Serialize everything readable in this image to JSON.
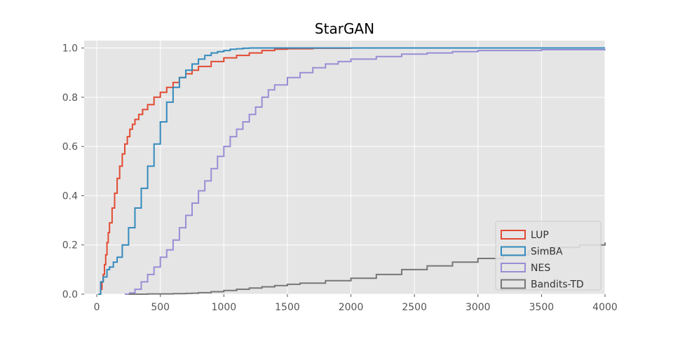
{
  "chart_data": {
    "type": "line",
    "title": "StarGAN",
    "xlabel": "",
    "ylabel": "",
    "xlim": [
      -100,
      4000
    ],
    "ylim": [
      0,
      1.03
    ],
    "xticks": [
      0,
      500,
      1000,
      1500,
      2000,
      2500,
      3000,
      3500,
      4000
    ],
    "yticks": [
      0.0,
      0.2,
      0.4,
      0.6,
      0.8,
      1.0
    ],
    "xtick_labels": [
      "0",
      "500",
      "1000",
      "1500",
      "2000",
      "2500",
      "3000",
      "3500",
      "4000"
    ],
    "ytick_labels": [
      "0.0",
      "0.2",
      "0.4",
      "0.6",
      "0.8",
      "1.0"
    ],
    "grid": true,
    "legend_position": "lower-right",
    "series": [
      {
        "name": "LUP",
        "color": "#E24A33",
        "x": [
          20,
          30,
          40,
          50,
          60,
          70,
          80,
          90,
          100,
          120,
          140,
          160,
          180,
          200,
          220,
          240,
          260,
          280,
          300,
          330,
          360,
          400,
          450,
          500,
          550,
          600,
          650,
          700,
          750,
          800,
          900,
          1000,
          1100,
          1200,
          1300,
          1400,
          1500,
          1700,
          2000,
          3000,
          4000
        ],
        "y": [
          0.0,
          0.02,
          0.05,
          0.08,
          0.12,
          0.16,
          0.21,
          0.25,
          0.29,
          0.35,
          0.41,
          0.47,
          0.52,
          0.57,
          0.61,
          0.64,
          0.67,
          0.69,
          0.71,
          0.73,
          0.75,
          0.77,
          0.8,
          0.82,
          0.84,
          0.86,
          0.88,
          0.895,
          0.91,
          0.925,
          0.945,
          0.96,
          0.97,
          0.98,
          0.99,
          0.995,
          0.997,
          0.999,
          1.0,
          1.0,
          1.0
        ]
      },
      {
        "name": "SimBA",
        "color": "#348ABD",
        "x": [
          10,
          30,
          50,
          80,
          100,
          130,
          160,
          200,
          250,
          300,
          350,
          400,
          450,
          500,
          550,
          600,
          650,
          700,
          750,
          800,
          850,
          900,
          950,
          1000,
          1050,
          1100,
          1150,
          1200,
          1300,
          1500,
          2000,
          4000
        ],
        "y": [
          0.0,
          0.05,
          0.07,
          0.1,
          0.11,
          0.13,
          0.15,
          0.2,
          0.27,
          0.35,
          0.43,
          0.52,
          0.61,
          0.7,
          0.78,
          0.84,
          0.88,
          0.91,
          0.935,
          0.955,
          0.97,
          0.98,
          0.985,
          0.99,
          0.995,
          0.997,
          0.999,
          1.0,
          1.0,
          1.0,
          1.0,
          1.0
        ]
      },
      {
        "name": "NES",
        "color": "#988ED5",
        "x": [
          220,
          260,
          300,
          350,
          400,
          450,
          500,
          550,
          600,
          650,
          700,
          750,
          800,
          850,
          900,
          950,
          1000,
          1050,
          1100,
          1150,
          1200,
          1250,
          1300,
          1350,
          1400,
          1500,
          1600,
          1700,
          1800,
          1900,
          2000,
          2200,
          2400,
          2600,
          2800,
          3000,
          3500,
          4000
        ],
        "y": [
          0.0,
          0.005,
          0.02,
          0.05,
          0.08,
          0.11,
          0.15,
          0.18,
          0.22,
          0.27,
          0.32,
          0.37,
          0.42,
          0.46,
          0.51,
          0.56,
          0.6,
          0.64,
          0.67,
          0.7,
          0.73,
          0.76,
          0.8,
          0.83,
          0.85,
          0.88,
          0.9,
          0.92,
          0.935,
          0.945,
          0.955,
          0.965,
          0.975,
          0.98,
          0.985,
          0.99,
          0.993,
          0.995
        ]
      },
      {
        "name": "Bandits-TD",
        "color": "#777777",
        "x": [
          250,
          400,
          600,
          700,
          750,
          800,
          900,
          1000,
          1100,
          1200,
          1300,
          1400,
          1500,
          1600,
          1800,
          2000,
          2200,
          2400,
          2600,
          2800,
          3000,
          3200,
          3400,
          3600,
          3800,
          4000
        ],
        "y": [
          0.0,
          0.001,
          0.002,
          0.003,
          0.004,
          0.006,
          0.01,
          0.015,
          0.02,
          0.025,
          0.03,
          0.035,
          0.04,
          0.045,
          0.055,
          0.065,
          0.08,
          0.1,
          0.115,
          0.13,
          0.145,
          0.16,
          0.175,
          0.19,
          0.2,
          0.21
        ]
      }
    ]
  }
}
